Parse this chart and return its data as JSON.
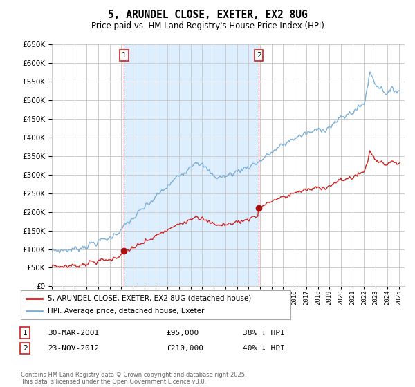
{
  "title": "5, ARUNDEL CLOSE, EXETER, EX2 8UG",
  "subtitle": "Price paid vs. HM Land Registry's House Price Index (HPI)",
  "background_color": "#ffffff",
  "grid_color": "#cccccc",
  "hpi_color": "#7bafd4",
  "price_color": "#cc2222",
  "shade_color": "#ddeeff",
  "sale1_date": "30-MAR-2001",
  "sale1_price": 95000,
  "sale1_hpi_pct": "38% ↓ HPI",
  "sale2_date": "23-NOV-2012",
  "sale2_price": 210000,
  "sale2_hpi_pct": "40% ↓ HPI",
  "legend_label1": "5, ARUNDEL CLOSE, EXETER, EX2 8UG (detached house)",
  "legend_label2": "HPI: Average price, detached house, Exeter",
  "footer": "Contains HM Land Registry data © Crown copyright and database right 2025.\nThis data is licensed under the Open Government Licence v3.0.",
  "ylim_max": 650000,
  "ytick_step": 50000,
  "x_start_year": 1995,
  "x_end_year": 2025,
  "sale1_year": 2001.247,
  "sale2_year": 2012.896
}
